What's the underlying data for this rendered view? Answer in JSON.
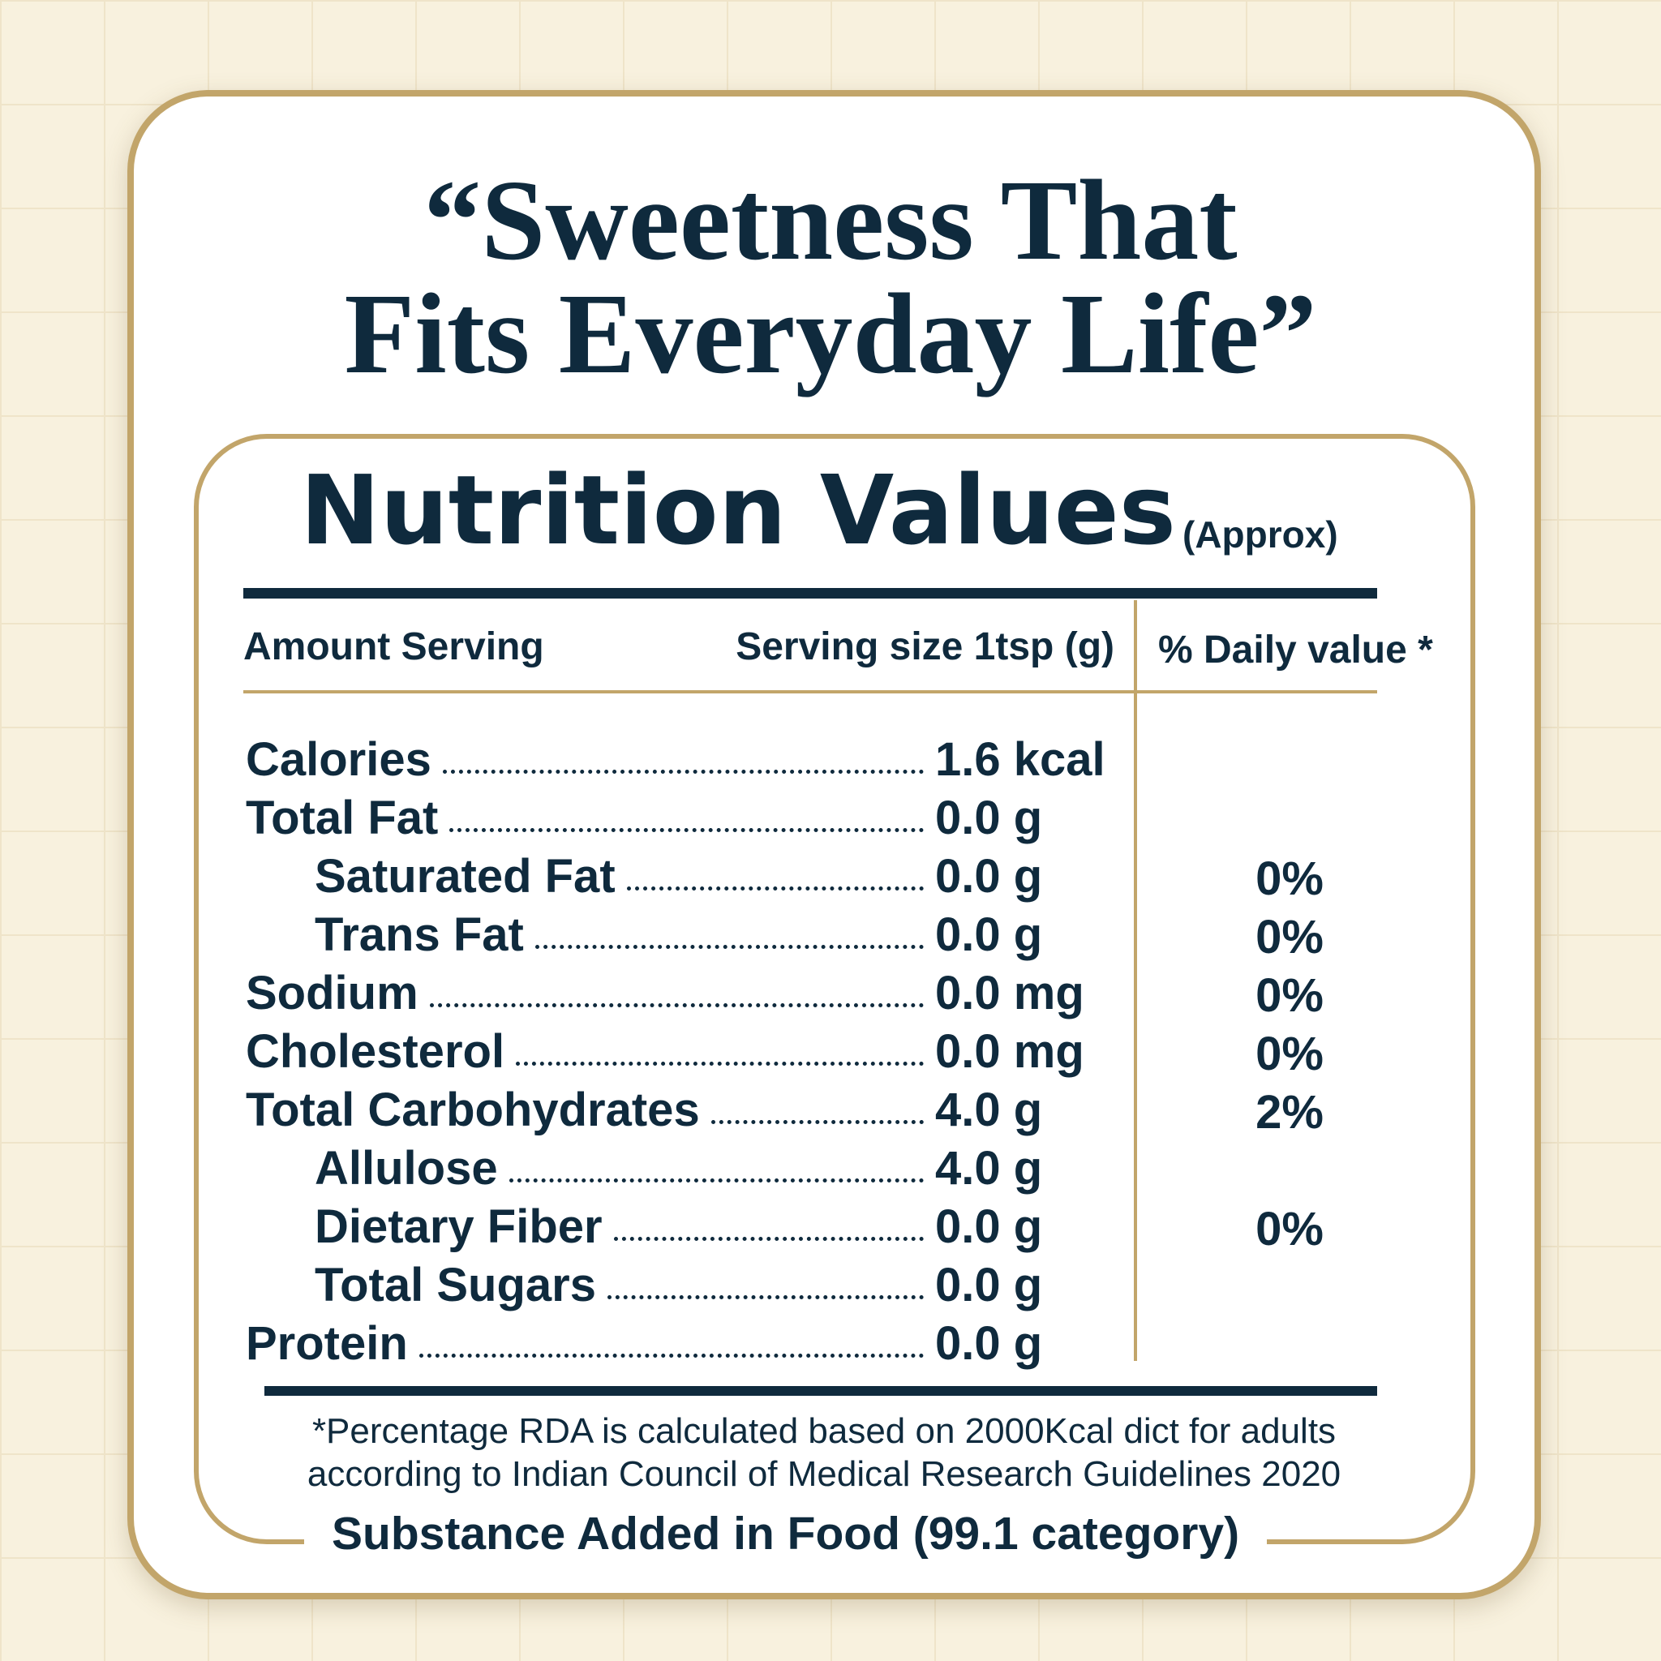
{
  "headline": {
    "lines": [
      "“Sweetness That",
      "Fits Everyday Life”"
    ]
  },
  "label": {
    "title": "Nutrition Values",
    "title_note": "(Approx)",
    "header": {
      "amount": "Amount Serving",
      "serving": "Serving size 1tsp (g)",
      "daily": "% Daily value *"
    },
    "rows": [
      {
        "name": "Calories",
        "amount": "1.6 kcal"
      },
      {
        "name": "Total Fat",
        "amount": "0.0 g"
      },
      {
        "name": "Saturated Fat",
        "amount": "0.0 g",
        "daily": "0%"
      },
      {
        "name": "Trans Fat",
        "amount": "0.0 g",
        "daily": "0%"
      },
      {
        "name": "Sodium",
        "amount": "0.0 mg",
        "daily": "0%"
      },
      {
        "name": "Cholesterol",
        "amount": "0.0 mg",
        "daily": "0%"
      },
      {
        "name": "Total Carbohydrates",
        "amount": "4.0 g",
        "daily": "2%"
      },
      {
        "name": "Allulose",
        "amount": "4.0 g"
      },
      {
        "name": "Dietary Fiber",
        "amount": "0.0 g",
        "daily": "0%"
      },
      {
        "name": "Total Sugars",
        "amount": "0.0 g"
      },
      {
        "name": "Protein",
        "amount": "0.0 g"
      }
    ],
    "footnote": [
      "*Percentage RDA is calculated based on 2000Kcal dict for adults",
      "according to Indian Council of Medical Research Guidelines 2020"
    ],
    "footer": "Substance Added in Food (99.1 category)"
  }
}
